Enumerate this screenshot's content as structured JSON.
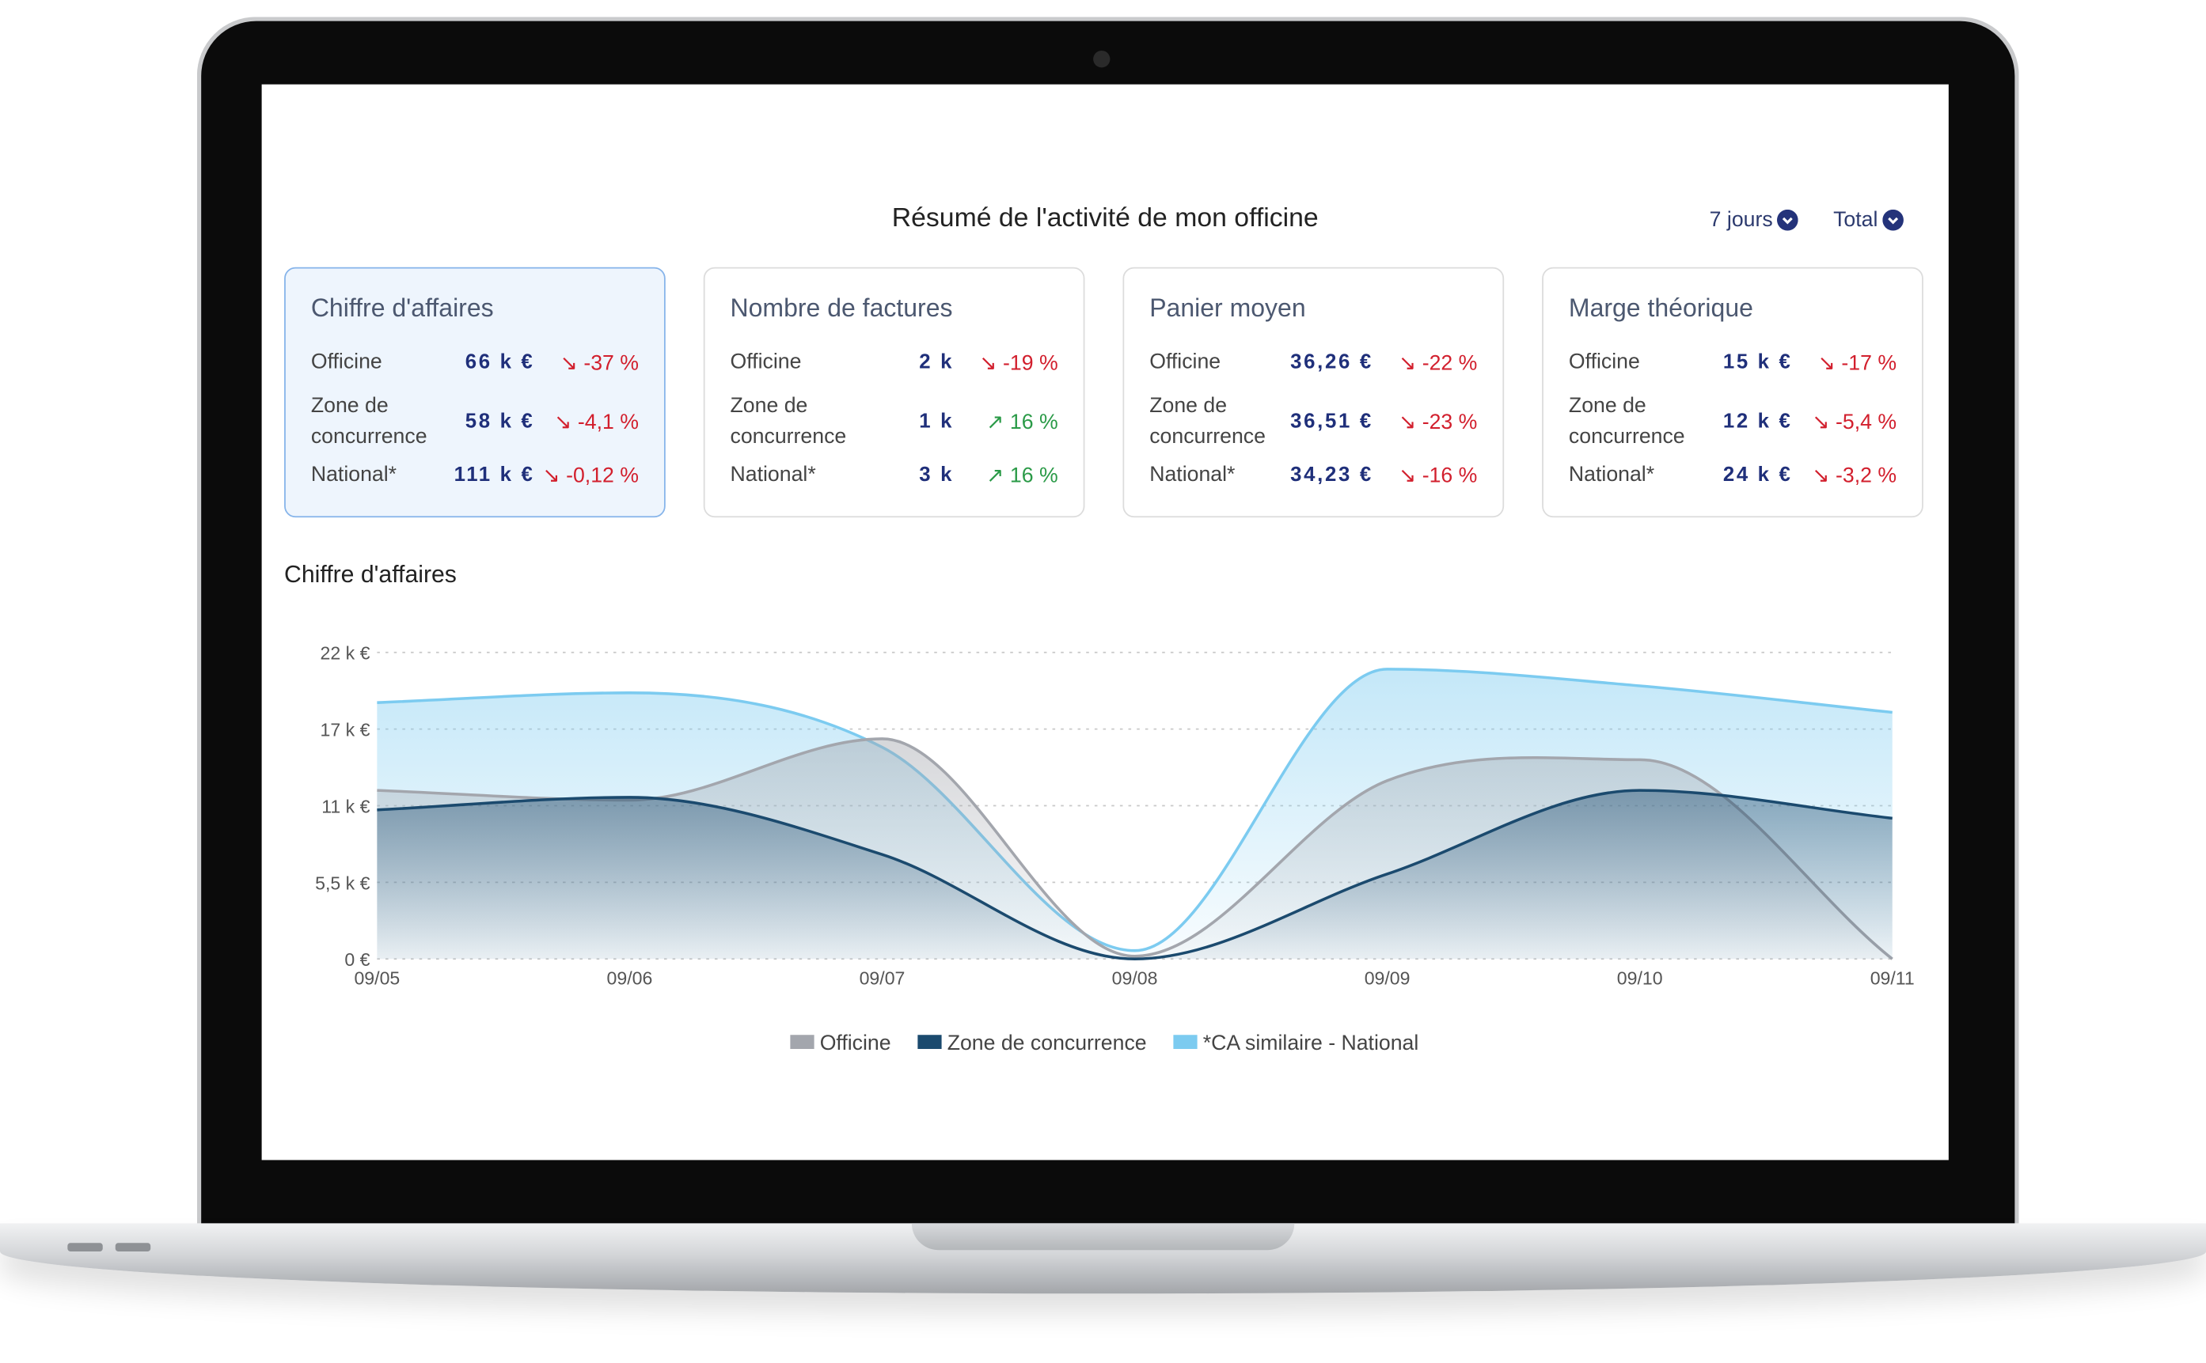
{
  "header": {
    "title": "Résumé de l'activité de mon officine",
    "filters": [
      "7 jours",
      "Total"
    ]
  },
  "cards": [
    {
      "title": "Chiffre d'affaires",
      "active": true,
      "rows": [
        {
          "label": "Officine",
          "value": "66 k €",
          "change": "↘ -37 %",
          "change_color": "#d21f2d"
        },
        {
          "label": "Zone de concurrence",
          "value": "58 k €",
          "change": "↘ -4,1 %",
          "change_color": "#d21f2d"
        },
        {
          "label": "National*",
          "value": "111 k €",
          "change": "↘ -0,12 %",
          "change_color": "#d21f2d"
        }
      ]
    },
    {
      "title": "Nombre de factures",
      "active": false,
      "rows": [
        {
          "label": "Officine",
          "value": "2 k",
          "change": "↘ -19 %",
          "change_color": "#d21f2d"
        },
        {
          "label": "Zone de concurrence",
          "value": "1 k",
          "change": "↗ 16 %",
          "change_color": "#2a9a47"
        },
        {
          "label": "National*",
          "value": "3 k",
          "change": "↗ 16 %",
          "change_color": "#2a9a47"
        }
      ]
    },
    {
      "title": "Panier moyen",
      "active": false,
      "rows": [
        {
          "label": "Officine",
          "value": "36,26 €",
          "change": "↘ -22 %",
          "change_color": "#d21f2d"
        },
        {
          "label": "Zone de concurrence",
          "value": "36,51 €",
          "change": "↘ -23 %",
          "change_color": "#d21f2d"
        },
        {
          "label": "National*",
          "value": "34,23 €",
          "change": "↘ -16 %",
          "change_color": "#d21f2d"
        }
      ]
    },
    {
      "title": "Marge théorique",
      "active": false,
      "rows": [
        {
          "label": "Officine",
          "value": "15 k €",
          "change": "↘ -17 %",
          "change_color": "#d21f2d"
        },
        {
          "label": "Zone de concurrence",
          "value": "12 k €",
          "change": "↘ -5,4 %",
          "change_color": "#d21f2d"
        },
        {
          "label": "National*",
          "value": "24 k €",
          "change": "↘ -3,2 %",
          "change_color": "#d21f2d"
        }
      ]
    }
  ],
  "chart_data": {
    "type": "area",
    "title": "Chiffre d'affaires",
    "categories": [
      "09/05",
      "09/06",
      "09/07",
      "09/08",
      "09/09",
      "09/10",
      "09/11"
    ],
    "series": [
      {
        "name": "*CA similaire - National",
        "color": "#7ccbf0",
        "values": [
          18.4,
          19.1,
          15.2,
          0.6,
          20.8,
          19.6,
          17.7
        ]
      },
      {
        "name": "Officine",
        "color": "#a3a6ad",
        "values": [
          12.1,
          11.4,
          15.8,
          0.2,
          12.8,
          14.3,
          0
        ]
      },
      {
        "name": "Zone de concurrence",
        "color": "#1b4a6e",
        "values": [
          10.7,
          11.6,
          7.5,
          0,
          6.1,
          12.1,
          10.1
        ]
      }
    ],
    "legend_order": [
      1,
      2,
      0
    ],
    "ylim": [
      0,
      22
    ],
    "yticks": [
      {
        "value": 0,
        "label": "0 €"
      },
      {
        "value": 5.5,
        "label": "5,5 k €"
      },
      {
        "value": 11,
        "label": "11 k €"
      },
      {
        "value": 16.5,
        "label": "17 k €"
      },
      {
        "value": 22,
        "label": "22 k €"
      }
    ],
    "grid": true
  }
}
